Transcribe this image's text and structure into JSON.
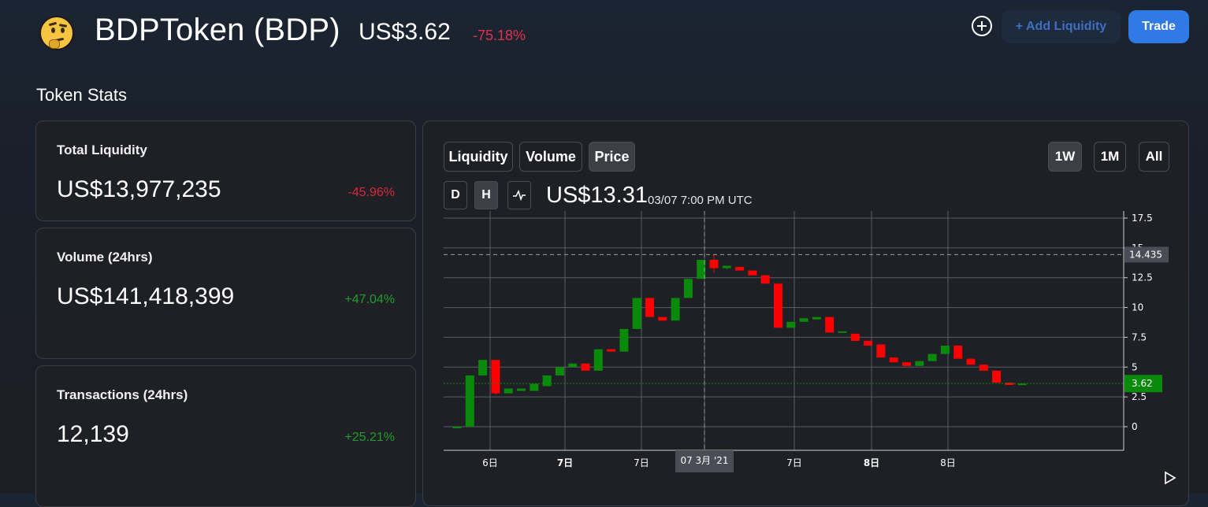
{
  "header": {
    "token_name": "BDPToken (BDP)",
    "price": "US$3.62",
    "change": "-75.18%",
    "add_liquidity_label": "+ Add Liquidity",
    "trade_label": "Trade"
  },
  "section_title": "Token Stats",
  "stats": [
    {
      "label": "Total Liquidity",
      "value": "US$13,977,235",
      "change": "-45.96%"
    },
    {
      "label": "Volume (24hrs)",
      "value": "US$141,418,399",
      "change": "+47.04%"
    },
    {
      "label": "Transactions (24hrs)",
      "value": "12,139",
      "change": "+25.21%"
    }
  ],
  "chart_panel": {
    "tabs": [
      "Liquidity",
      "Volume",
      "Price"
    ],
    "active_tab": "Price",
    "ranges": [
      "1W",
      "1M",
      "All"
    ],
    "active_range": "1W",
    "intervals": [
      "D",
      "H"
    ],
    "active_interval": "H",
    "current_price": "US$13.31",
    "current_time": "03/07 7:00 PM UTC"
  },
  "colors": {
    "up": "#0a8a0a",
    "down": "#ff0000",
    "accent": "#2f7ae5",
    "negative": "#d42b3a",
    "positive": "#1f9e2c"
  },
  "chart_data": {
    "type": "candlestick",
    "y_ticks": [
      "17.5",
      "15",
      "12.5",
      "10",
      "7.5",
      "5",
      "2.5",
      "0"
    ],
    "ylim": [
      -2,
      18
    ],
    "x_tick_labels": [
      "6日",
      "7日",
      "7日",
      "07 3月 '21",
      "7日",
      "8日",
      "8日"
    ],
    "crosshair_label": "07 3月 '21",
    "hover_price_label": "14.435",
    "last_price_label": "3.62",
    "candles": [
      {
        "o": 0.0,
        "h": 0.0,
        "l": 0.0,
        "c": 0.0
      },
      {
        "o": 0.0,
        "h": 4.3,
        "l": 0.0,
        "c": 4.3
      },
      {
        "o": 4.3,
        "h": 5.6,
        "l": 4.3,
        "c": 5.6
      },
      {
        "o": 5.6,
        "h": 5.6,
        "l": 2.7,
        "c": 2.8
      },
      {
        "o": 2.8,
        "h": 3.2,
        "l": 2.8,
        "c": 3.2
      },
      {
        "o": 3.0,
        "h": 3.2,
        "l": 3.0,
        "c": 3.2
      },
      {
        "o": 3.0,
        "h": 3.6,
        "l": 3.0,
        "c": 3.6
      },
      {
        "o": 3.4,
        "h": 4.3,
        "l": 3.4,
        "c": 4.3
      },
      {
        "o": 4.3,
        "h": 5.0,
        "l": 4.3,
        "c": 5.0
      },
      {
        "o": 5.0,
        "h": 5.3,
        "l": 5.0,
        "c": 5.3
      },
      {
        "o": 5.3,
        "h": 5.3,
        "l": 4.7,
        "c": 4.7
      },
      {
        "o": 4.7,
        "h": 6.5,
        "l": 4.7,
        "c": 6.5
      },
      {
        "o": 6.5,
        "h": 6.5,
        "l": 6.3,
        "c": 6.3
      },
      {
        "o": 6.3,
        "h": 8.2,
        "l": 6.3,
        "c": 8.2
      },
      {
        "o": 8.2,
        "h": 10.8,
        "l": 8.2,
        "c": 10.8
      },
      {
        "o": 10.8,
        "h": 10.8,
        "l": 9.2,
        "c": 9.2
      },
      {
        "o": 9.2,
        "h": 9.2,
        "l": 8.9,
        "c": 8.9
      },
      {
        "o": 8.9,
        "h": 10.8,
        "l": 8.9,
        "c": 10.8
      },
      {
        "o": 10.8,
        "h": 12.4,
        "l": 10.8,
        "c": 12.4
      },
      {
        "o": 12.4,
        "h": 14.0,
        "l": 12.4,
        "c": 14.0
      },
      {
        "o": 14.0,
        "h": 14.4,
        "l": 12.9,
        "c": 13.3
      },
      {
        "o": 13.3,
        "h": 13.5,
        "l": 13.2,
        "c": 13.5
      },
      {
        "o": 13.4,
        "h": 13.4,
        "l": 13.1,
        "c": 13.1
      },
      {
        "o": 13.1,
        "h": 13.1,
        "l": 12.7,
        "c": 12.7
      },
      {
        "o": 12.7,
        "h": 12.7,
        "l": 12.0,
        "c": 12.0
      },
      {
        "o": 12.0,
        "h": 12.0,
        "l": 8.3,
        "c": 8.3
      },
      {
        "o": 8.3,
        "h": 8.8,
        "l": 8.3,
        "c": 8.8
      },
      {
        "o": 8.8,
        "h": 9.1,
        "l": 8.8,
        "c": 9.1
      },
      {
        "o": 9.0,
        "h": 9.2,
        "l": 9.0,
        "c": 9.2
      },
      {
        "o": 9.2,
        "h": 9.2,
        "l": 7.9,
        "c": 7.9
      },
      {
        "o": 7.9,
        "h": 8.0,
        "l": 7.9,
        "c": 8.0
      },
      {
        "o": 7.8,
        "h": 7.8,
        "l": 7.2,
        "c": 7.2
      },
      {
        "o": 7.2,
        "h": 7.2,
        "l": 6.8,
        "c": 6.8
      },
      {
        "o": 6.9,
        "h": 6.9,
        "l": 5.8,
        "c": 5.8
      },
      {
        "o": 5.8,
        "h": 5.8,
        "l": 5.4,
        "c": 5.4
      },
      {
        "o": 5.4,
        "h": 5.4,
        "l": 5.1,
        "c": 5.1
      },
      {
        "o": 5.1,
        "h": 5.5,
        "l": 5.1,
        "c": 5.5
      },
      {
        "o": 5.5,
        "h": 6.1,
        "l": 5.5,
        "c": 6.1
      },
      {
        "o": 6.1,
        "h": 6.8,
        "l": 6.1,
        "c": 6.8
      },
      {
        "o": 6.8,
        "h": 6.8,
        "l": 5.7,
        "c": 5.7
      },
      {
        "o": 5.7,
        "h": 5.7,
        "l": 5.2,
        "c": 5.2
      },
      {
        "o": 5.2,
        "h": 5.2,
        "l": 4.7,
        "c": 4.7
      },
      {
        "o": 4.7,
        "h": 4.7,
        "l": 3.7,
        "c": 3.7
      },
      {
        "o": 3.7,
        "h": 3.7,
        "l": 3.5,
        "c": 3.5
      },
      {
        "o": 3.5,
        "h": 3.62,
        "l": 3.5,
        "c": 3.62
      }
    ]
  }
}
